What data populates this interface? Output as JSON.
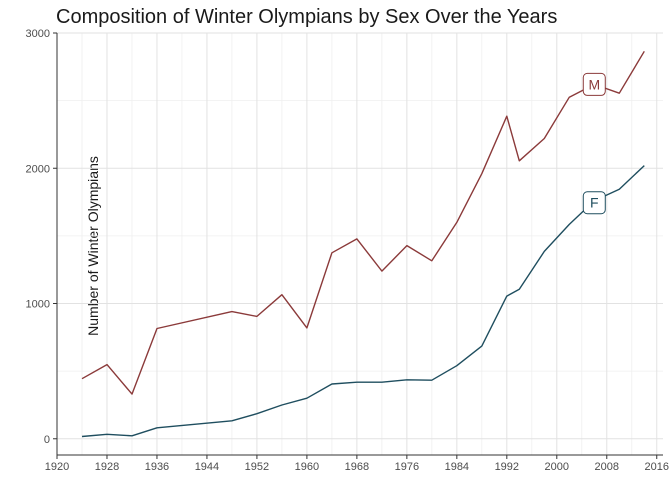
{
  "chart_data": {
    "type": "line",
    "title": "Composition of Winter Olympians by Sex Over the Years",
    "xlabel": "",
    "ylabel": "Number of Winter Olympians",
    "xlim": [
      1920,
      2017
    ],
    "ylim": [
      -120,
      3000
    ],
    "x_ticks": [
      1920,
      1928,
      1936,
      1944,
      1952,
      1960,
      1968,
      1976,
      1984,
      1992,
      2000,
      2008,
      2016
    ],
    "y_ticks": [
      0,
      1000,
      2000,
      3000
    ],
    "grid": true,
    "series": [
      {
        "name": "M",
        "color": "#8b3a3a",
        "x": [
          1924,
          1928,
          1932,
          1936,
          1948,
          1952,
          1956,
          1960,
          1964,
          1968,
          1972,
          1976,
          1980,
          1984,
          1988,
          1992,
          1994,
          1998,
          2002,
          2006,
          2010,
          2014
        ],
        "y": [
          444,
          548,
          330,
          815,
          940,
          905,
          1065,
          820,
          1375,
          1478,
          1240,
          1428,
          1316,
          1600,
          1960,
          2385,
          2055,
          2220,
          2525,
          2620,
          2555,
          2865
        ]
      },
      {
        "name": "F",
        "color": "#1f4e5f",
        "x": [
          1924,
          1928,
          1932,
          1936,
          1948,
          1952,
          1956,
          1960,
          1964,
          1968,
          1972,
          1976,
          1980,
          1984,
          1988,
          1992,
          1994,
          1998,
          2002,
          2006,
          2010,
          2014
        ],
        "y": [
          17,
          33,
          22,
          81,
          133,
          185,
          250,
          300,
          405,
          418,
          418,
          436,
          433,
          540,
          685,
          1055,
          1105,
          1385,
          1585,
          1760,
          1845,
          2020
        ]
      }
    ],
    "labels": [
      {
        "text": "M",
        "x": 2006,
        "y": 2620,
        "color": "#8b3a3a"
      },
      {
        "text": "F",
        "x": 2006,
        "y": 1745,
        "color": "#1f4e5f"
      }
    ]
  }
}
